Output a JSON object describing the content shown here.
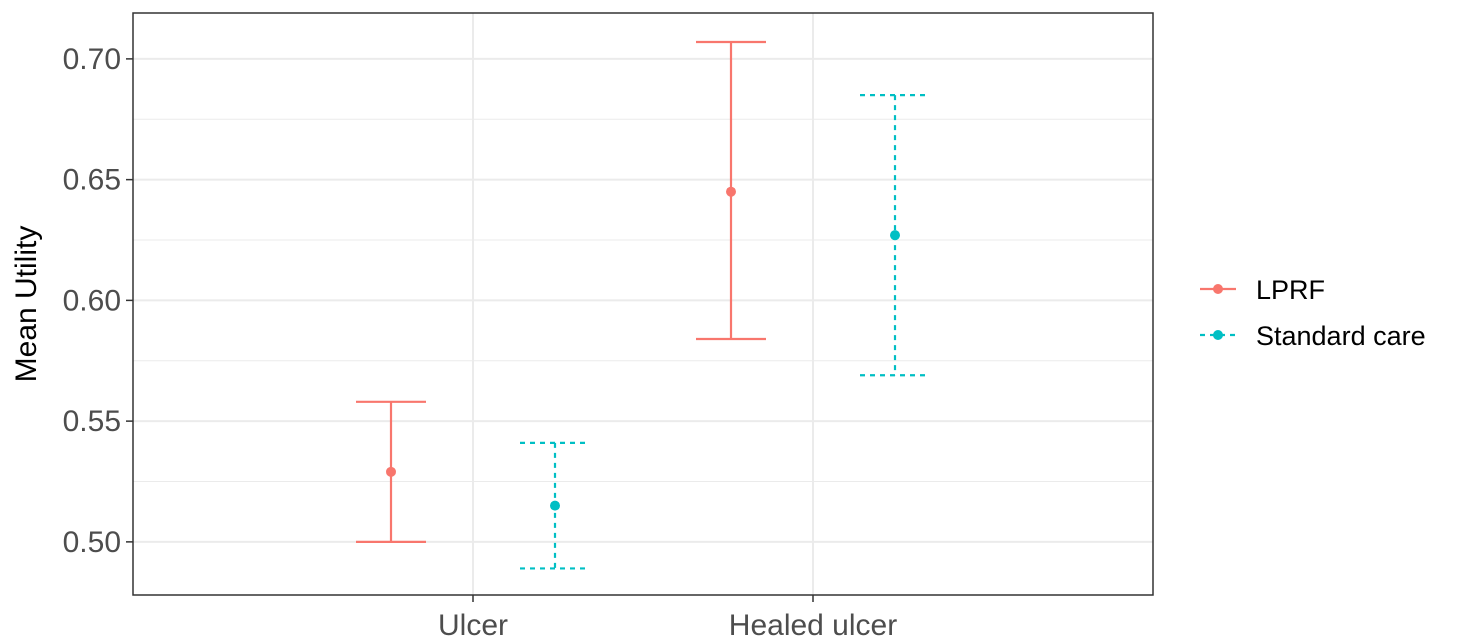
{
  "chart_data": {
    "type": "errorbar",
    "categories": [
      "Ulcer",
      "Healed ulcer"
    ],
    "xlabel": "",
    "ylabel": "Mean Utility",
    "ylim": [
      0.478,
      0.719
    ],
    "yticks": [
      0.5,
      0.55,
      0.6,
      0.65,
      0.7
    ],
    "ytick_labels": [
      "0.50",
      "0.55",
      "0.60",
      "0.65",
      "0.70"
    ],
    "grid": true,
    "legend_position": "right",
    "series": [
      {
        "name": "LPRF",
        "color": "#F8766D",
        "linetype": "solid",
        "means": [
          0.529,
          0.645
        ],
        "lower": [
          0.5,
          0.584
        ],
        "upper": [
          0.558,
          0.707
        ]
      },
      {
        "name": "Standard care",
        "color": "#00BFC4",
        "linetype": "dashed",
        "means": [
          0.515,
          0.627
        ],
        "lower": [
          0.489,
          0.569
        ],
        "upper": [
          0.541,
          0.685
        ]
      }
    ]
  }
}
